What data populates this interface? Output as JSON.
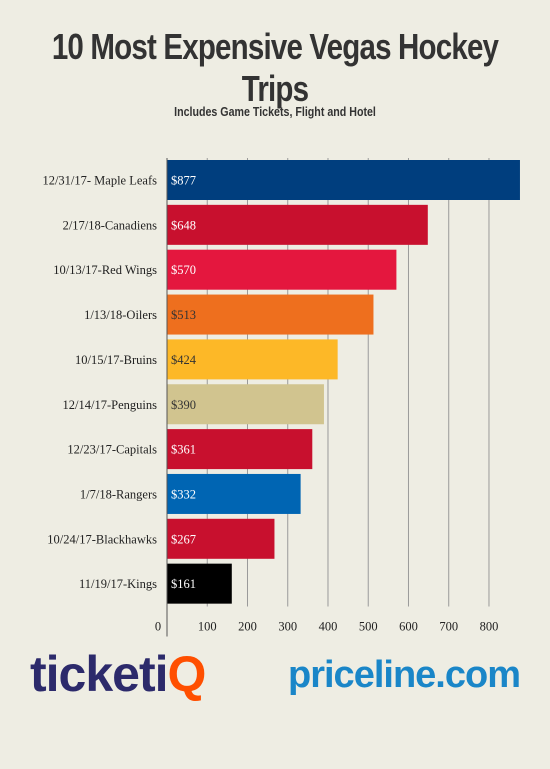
{
  "title": "10 Most Expensive Vegas Hockey Trips",
  "subtitle": "Includes Game Tickets, Flight and Hotel",
  "logos": {
    "ticketiq_main": "ticketi",
    "ticketiq_accent": "Q",
    "priceline": "priceline.com"
  },
  "colors": {
    "background": "#eeede3",
    "ticketiq": "#2c2a6b",
    "ticketiq_accent": "#ff4f00",
    "priceline": "#1a86c8"
  },
  "chart_data": {
    "type": "bar",
    "orientation": "horizontal",
    "title": "10 Most Expensive Vegas Hockey Trips",
    "subtitle": "Includes Game Tickets, Flight and Hotel",
    "categories": [
      "12/31/17- Maple Leafs",
      "2/17/18-Canadiens",
      "10/13/17-Red Wings",
      "1/13/18-Oilers",
      "10/15/17-Bruins",
      "12/14/17-Penguins",
      "12/23/17-Capitals",
      "1/7/18-Rangers",
      "10/24/17-Blackhawks",
      "11/19/17-Kings"
    ],
    "values": [
      877,
      648,
      570,
      513,
      424,
      390,
      361,
      332,
      267,
      161
    ],
    "value_labels": [
      "$877",
      "$648",
      "$570",
      "$513",
      "$424",
      "$390",
      "$361",
      "$332",
      "$267",
      "$161"
    ],
    "bar_colors": [
      "#003e7e",
      "#c8102e",
      "#e4173e",
      "#ee6f1e",
      "#fdb827",
      "#d1c48f",
      "#c8102e",
      "#0065b3",
      "#c8102e",
      "#000000"
    ],
    "label_colors": [
      "#ffffff",
      "#ffffff",
      "#ffffff",
      "#333333",
      "#333333",
      "#333333",
      "#ffffff",
      "#ffffff",
      "#ffffff",
      "#ffffff"
    ],
    "x_ticks": [
      0,
      100,
      200,
      300,
      400,
      500,
      600,
      700,
      800
    ],
    "xlim": [
      0,
      900
    ],
    "grid": true
  }
}
